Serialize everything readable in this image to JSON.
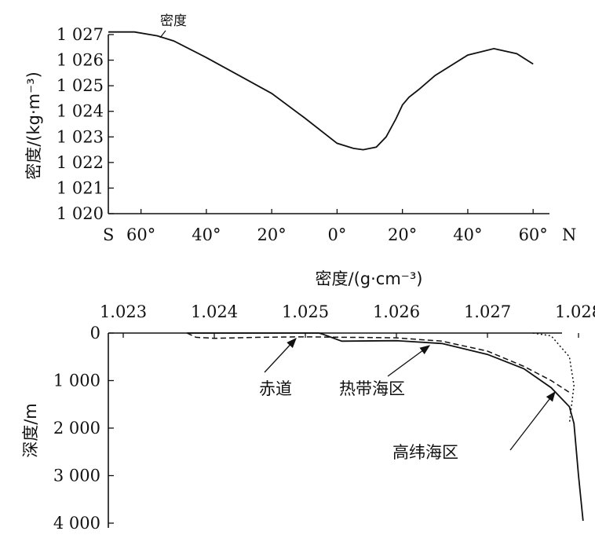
{
  "chart_data": [
    {
      "type": "line",
      "title": "",
      "ylabel": "密度/(kg·m⁻³)",
      "xlabel": "",
      "x_start_label": "S",
      "x_end_label": "N",
      "xticks": [
        "60°",
        "40°",
        "20°",
        "0°",
        "20°",
        "40°",
        "60°"
      ],
      "yticks": [
        "1 020",
        "1 021",
        "1 022",
        "1 023",
        "1 024",
        "1 025",
        "1 026",
        "1 027"
      ],
      "xlim": [
        -70,
        65
      ],
      "ylim": [
        1020,
        1027
      ],
      "grid": false,
      "series": [
        {
          "name": "密度",
          "x": [
            -70,
            -62,
            -55,
            -50,
            -40,
            -30,
            -20,
            -10,
            0,
            5,
            8,
            12,
            15,
            18,
            20,
            22,
            25,
            30,
            40,
            48,
            55,
            60
          ],
          "y": [
            1027.1,
            1027.1,
            1026.95,
            1026.75,
            1026.1,
            1025.4,
            1024.7,
            1023.75,
            1022.75,
            1022.55,
            1022.5,
            1022.6,
            1023.0,
            1023.7,
            1024.25,
            1024.55,
            1024.85,
            1025.4,
            1026.2,
            1026.45,
            1026.25,
            1025.85
          ]
        }
      ]
    },
    {
      "type": "line",
      "title": "",
      "xlabel": "密度/(g·cm⁻³)",
      "ylabel": "深度/m",
      "xticks": [
        "1.023",
        "1.024",
        "1.025",
        "1.026",
        "1.027",
        "1.028"
      ],
      "yticks": [
        "0",
        "1 000",
        "2 000",
        "3 000",
        "4 000"
      ],
      "xlim": [
        1.023,
        1.028
      ],
      "ylim": [
        0,
        4000
      ],
      "x_axis_position": "top",
      "y_inverted": true,
      "grid": false,
      "series": [
        {
          "name": "赤道",
          "line_style": "solid",
          "x": [
            1.0237,
            1.02515,
            1.0252,
            1.0254,
            1.026,
            1.0265,
            1.027,
            1.0274,
            1.0277,
            1.0279,
            1.02795,
            1.028,
            1.02805
          ],
          "y": [
            0,
            0,
            30,
            170,
            160,
            220,
            450,
            750,
            1150,
            1550,
            1900,
            3000,
            3950
          ]
        },
        {
          "name": "热带海区",
          "line_style": "dashed",
          "x": [
            1.0237,
            1.0238,
            1.024,
            1.0245,
            1.025,
            1.026,
            1.0265,
            1.027,
            1.0274,
            1.0277,
            1.0279
          ],
          "y": [
            0,
            90,
            110,
            90,
            80,
            100,
            170,
            380,
            700,
            1000,
            1250
          ]
        },
        {
          "name": "高纬海区",
          "line_style": "dotted",
          "x": [
            1.0275,
            1.0277,
            1.0279,
            1.02795,
            1.0279
          ],
          "y": [
            0,
            60,
            500,
            1100,
            1900
          ]
        }
      ],
      "annotations": [
        "赤道",
        "热带海区",
        "高纬海区"
      ]
    }
  ]
}
